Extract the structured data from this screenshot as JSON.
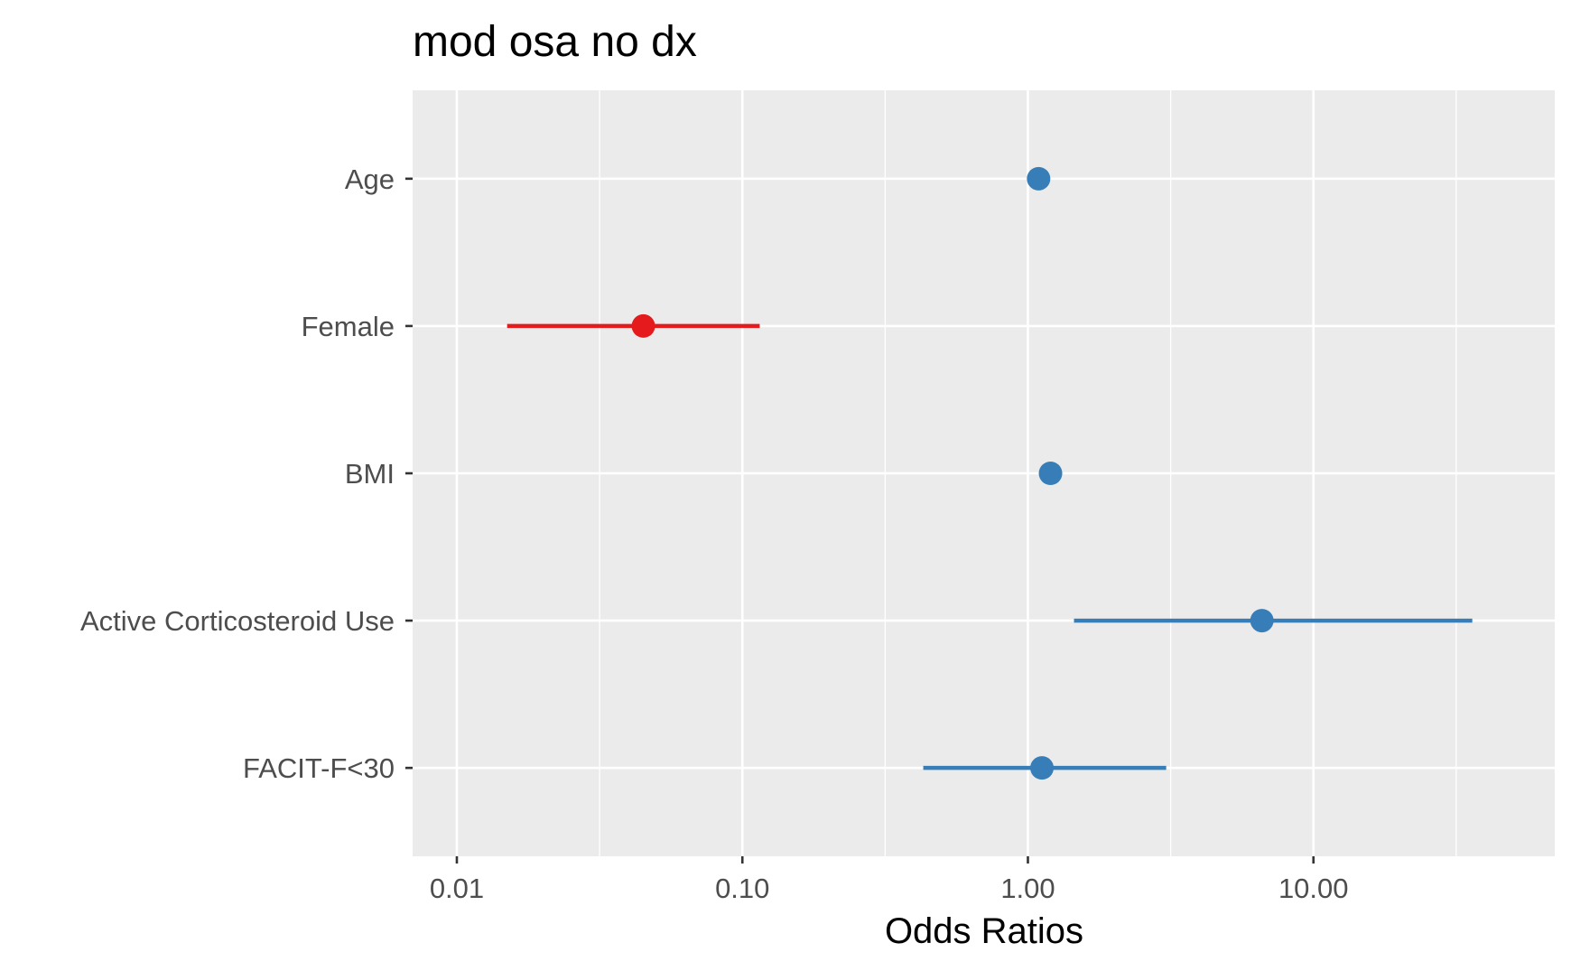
{
  "chart_data": {
    "type": "forest",
    "title": "mod osa no dx",
    "xlabel": "Odds Ratios",
    "ylabel": "",
    "x_scale": "log10",
    "xlim": [
      0.007,
      70
    ],
    "x_ticks": [
      0.01,
      0.1,
      1,
      10
    ],
    "x_tick_labels": [
      "0.01",
      "0.10",
      "1.00",
      "10.00"
    ],
    "grid": true,
    "legend": "none",
    "colors": {
      "positive": "#377eb8",
      "negative": "#e41a1c"
    },
    "terms": [
      {
        "label": "Age",
        "estimate": 1.09,
        "conf_low": null,
        "conf_high": null,
        "direction": "positive"
      },
      {
        "label": "Female",
        "estimate": 0.045,
        "conf_low": 0.015,
        "conf_high": 0.115,
        "direction": "negative"
      },
      {
        "label": "BMI",
        "estimate": 1.2,
        "conf_low": null,
        "conf_high": null,
        "direction": "positive"
      },
      {
        "label": "Active Corticosteroid Use",
        "estimate": 6.6,
        "conf_low": 1.45,
        "conf_high": 36,
        "direction": "positive"
      },
      {
        "label": "FACIT-F<30",
        "estimate": 1.12,
        "conf_low": 0.43,
        "conf_high": 3.05,
        "direction": "positive"
      }
    ]
  }
}
